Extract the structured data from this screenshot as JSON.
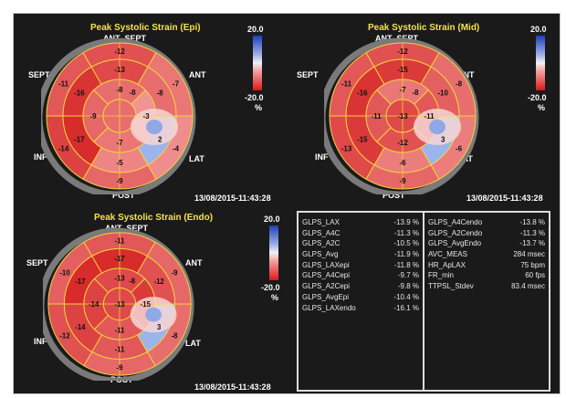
{
  "colors": {
    "background": "#1a1a1a",
    "title": "#f5e24a",
    "grid": "#f2d43a",
    "ring": "#7a7a7a",
    "text": "#ffffff"
  },
  "scale": {
    "max": "20.0",
    "min": "-20.0",
    "unit": "%"
  },
  "wall_labels": {
    "ant_sept": "ANT_SEPT",
    "ant": "ANT",
    "lat": "LAT",
    "post": "POST",
    "inf": "INF",
    "sept": "SEPT"
  },
  "panels": [
    {
      "title": "Peak Systolic Strain (Epi)",
      "timestamp": "13/08/2015-11:43:28",
      "outer": [
        "-12",
        "-7",
        "-4",
        "-9",
        "-14",
        "-11"
      ],
      "mid": [
        "-13",
        "-8",
        "2",
        "-5",
        "-17",
        "-16"
      ],
      "inner": [
        "-8",
        "-3",
        "-7",
        "-9"
      ],
      "apex": "",
      "extra": [
        "-8"
      ]
    },
    {
      "title": "Peak Systolic Strain (Mid)",
      "timestamp": "13/08/2015-11:43:28",
      "outer": [
        "-12",
        "-8",
        "-6",
        "-9",
        "-13",
        "-11"
      ],
      "mid": [
        "-15",
        "-10",
        "3",
        "-6",
        "-15",
        "-16"
      ],
      "inner": [
        "-7",
        "-11",
        "-12",
        "-11"
      ],
      "apex": "-13",
      "extra": [
        "-8"
      ]
    },
    {
      "title": "Peak Systolic Strain (Endo)",
      "timestamp": "13/08/2015-11:43:28",
      "outer": [
        "-11",
        "-9",
        "-8",
        "-9",
        "-12",
        "-10"
      ],
      "mid": [
        "-17",
        "-12",
        "3",
        "-11",
        "-14",
        "-17"
      ],
      "inner": [
        "-13",
        "-15",
        "-11",
        "-14"
      ],
      "apex": "-13",
      "extra": [
        "-8"
      ]
    }
  ],
  "table": {
    "left": [
      {
        "label": "GLPS_LAX",
        "value": "-13.9 %"
      },
      {
        "label": "GLPS_A4C",
        "value": "-11.3 %"
      },
      {
        "label": "GLPS_A2C",
        "value": "-10.5 %"
      },
      {
        "label": "GLPS_Avg",
        "value": "-11.9 %"
      },
      {
        "label": "GLPS_LAXepi",
        "value": "-11.8 %"
      },
      {
        "label": "GLPS_A4Cepi",
        "value": "-9.7 %"
      },
      {
        "label": "GLPS_A2Cepi",
        "value": "-9.8 %"
      },
      {
        "label": "GLPS_AvgEpi",
        "value": "-10.4 %"
      },
      {
        "label": "GLPS_LAXendo",
        "value": "-16.1 %"
      }
    ],
    "right": [
      {
        "label": "GLPS_A4Cendo",
        "value": "-13.8 %"
      },
      {
        "label": "GLPS_A2Cendo",
        "value": "-11.3 %"
      },
      {
        "label": "GLPS_AvgEndo",
        "value": "-13.7 %"
      },
      {
        "label": "AVC_MEAS",
        "value": "284 msec"
      },
      {
        "label": "HR_ApLAX",
        "value": "75 bpm"
      },
      {
        "label": "FR_min",
        "value": "60 fps"
      },
      {
        "label": "TTPSL_Stdev",
        "value": "83.4 msec"
      }
    ]
  }
}
